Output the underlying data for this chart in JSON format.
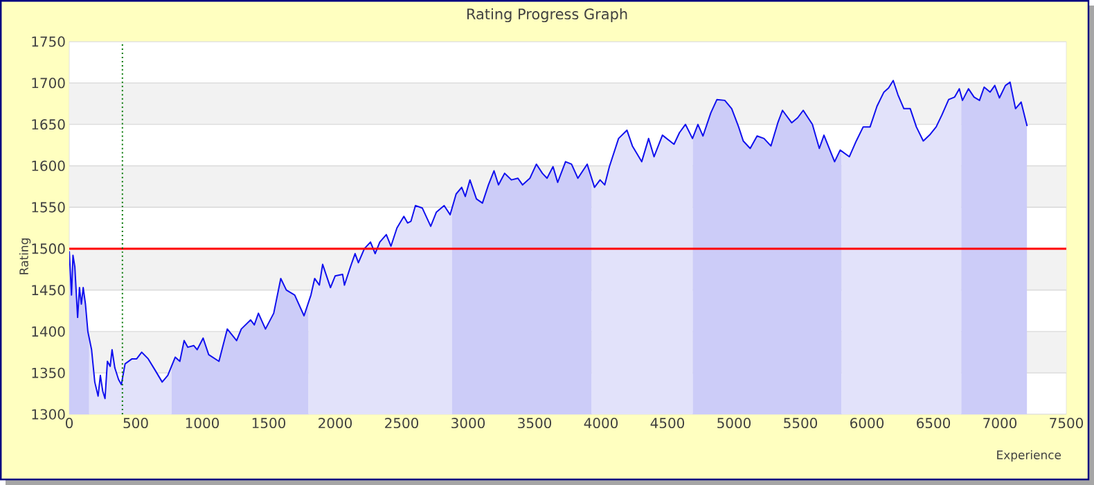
{
  "chart_data": {
    "type": "line",
    "title": "Rating Progress Graph",
    "xlabel": "Experience",
    "ylabel": "Rating",
    "xlim": [
      0,
      7500
    ],
    "ylim": [
      1300,
      1750
    ],
    "xticks": [
      0,
      500,
      1000,
      1500,
      2000,
      2500,
      3000,
      3500,
      4000,
      4500,
      5000,
      5500,
      6000,
      6500,
      7000,
      7500
    ],
    "yticks": [
      1300,
      1350,
      1400,
      1450,
      1500,
      1550,
      1600,
      1650,
      1700,
      1750
    ],
    "grid": "y",
    "series": [
      {
        "color": "#1010ee",
        "x": [
          0,
          17,
          28,
          42,
          63,
          77,
          91,
          105,
          122,
          140,
          168,
          192,
          217,
          234,
          252,
          269,
          287,
          308,
          322,
          343,
          371,
          392,
          420,
          472,
          507,
          545,
          594,
          647,
          699,
          741,
          797,
          832,
          864,
          892,
          937,
          962,
          1007,
          1049,
          1126,
          1189,
          1259,
          1294,
          1364,
          1392,
          1423,
          1476,
          1538,
          1591,
          1633,
          1696,
          1766,
          1818,
          1846,
          1881,
          1906,
          1965,
          2000,
          2056,
          2070,
          2115,
          2150,
          2175,
          2220,
          2266,
          2301,
          2336,
          2385,
          2420,
          2465,
          2517,
          2545,
          2570,
          2604,
          2656,
          2719,
          2761,
          2820,
          2865,
          2910,
          2952,
          2979,
          3014,
          3063,
          3108,
          3153,
          3195,
          3229,
          3275,
          3326,
          3375,
          3410,
          3465,
          3514,
          3559,
          3594,
          3639,
          3674,
          3733,
          3778,
          3826,
          3896,
          3951,
          3993,
          4028,
          4063,
          4132,
          4195,
          4236,
          4306,
          4358,
          4399,
          4462,
          4549,
          4590,
          4635,
          4688,
          4729,
          4767,
          4826,
          4872,
          4931,
          4983,
          5035,
          5070,
          5122,
          5174,
          5226,
          5278,
          5330,
          5365,
          5434,
          5479,
          5521,
          5590,
          5642,
          5677,
          5729,
          5757,
          5799,
          5868,
          5920,
          5972,
          6024,
          6076,
          6128,
          6163,
          6198,
          6233,
          6278,
          6326,
          6372,
          6424,
          6476,
          6521,
          6563,
          6615,
          6660,
          6695,
          6719,
          6764,
          6806,
          6847,
          6882,
          6927,
          6962,
          6997,
          7042,
          7077,
          7118,
          7160,
          7205
        ],
        "values": [
          1497,
          1444,
          1492,
          1478,
          1417,
          1453,
          1433,
          1453,
          1433,
          1400,
          1378,
          1339,
          1322,
          1347,
          1328,
          1319,
          1364,
          1358,
          1378,
          1356,
          1342,
          1336,
          1361,
          1367,
          1367,
          1375,
          1367,
          1353,
          1339,
          1347,
          1369,
          1364,
          1389,
          1381,
          1383,
          1378,
          1392,
          1372,
          1364,
          1403,
          1389,
          1403,
          1414,
          1408,
          1422,
          1403,
          1422,
          1464,
          1450,
          1444,
          1419,
          1444,
          1464,
          1456,
          1481,
          1453,
          1467,
          1469,
          1456,
          1478,
          1494,
          1483,
          1500,
          1508,
          1494,
          1508,
          1517,
          1503,
          1525,
          1539,
          1531,
          1533,
          1552,
          1549,
          1527,
          1544,
          1552,
          1541,
          1566,
          1574,
          1563,
          1583,
          1560,
          1555,
          1577,
          1594,
          1577,
          1591,
          1583,
          1585,
          1577,
          1585,
          1602,
          1591,
          1585,
          1599,
          1580,
          1605,
          1602,
          1585,
          1602,
          1574,
          1583,
          1577,
          1599,
          1633,
          1643,
          1624,
          1605,
          1633,
          1611,
          1637,
          1626,
          1640,
          1650,
          1633,
          1650,
          1636,
          1664,
          1680,
          1679,
          1669,
          1647,
          1630,
          1621,
          1636,
          1633,
          1624,
          1652,
          1667,
          1652,
          1658,
          1667,
          1650,
          1621,
          1637,
          1616,
          1605,
          1619,
          1611,
          1630,
          1647,
          1647,
          1672,
          1689,
          1694,
          1703,
          1686,
          1669,
          1669,
          1647,
          1630,
          1638,
          1647,
          1661,
          1680,
          1683,
          1693,
          1679,
          1693,
          1683,
          1679,
          1695,
          1689,
          1697,
          1682,
          1697,
          1701,
          1669,
          1677,
          1648
        ]
      }
    ],
    "bands": [
      {
        "axis": "x",
        "from": 0,
        "to": 150,
        "color": "#ccccf8"
      },
      {
        "axis": "x",
        "from": 150,
        "to": 770,
        "color": "#e2e2fa"
      },
      {
        "axis": "x",
        "from": 770,
        "to": 1800,
        "color": "#ccccf8"
      },
      {
        "axis": "x",
        "from": 1800,
        "to": 2880,
        "color": "#e2e2fa"
      },
      {
        "axis": "x",
        "from": 2880,
        "to": 3930,
        "color": "#ccccf8"
      },
      {
        "axis": "x",
        "from": 3930,
        "to": 4690,
        "color": "#e2e2fa"
      },
      {
        "axis": "x",
        "from": 4690,
        "to": 5810,
        "color": "#ccccf8"
      },
      {
        "axis": "x",
        "from": 5810,
        "to": 6710,
        "color": "#e2e2fa"
      },
      {
        "axis": "x",
        "from": 6710,
        "to": 7205,
        "color": "#ccccf8"
      }
    ],
    "ref_lines": [
      {
        "axis": "y",
        "value": 1500,
        "color": "#ff0000",
        "line_style": "solid"
      },
      {
        "axis": "x",
        "value": 400,
        "color": "#007700",
        "line_style": "dotted"
      }
    ]
  }
}
